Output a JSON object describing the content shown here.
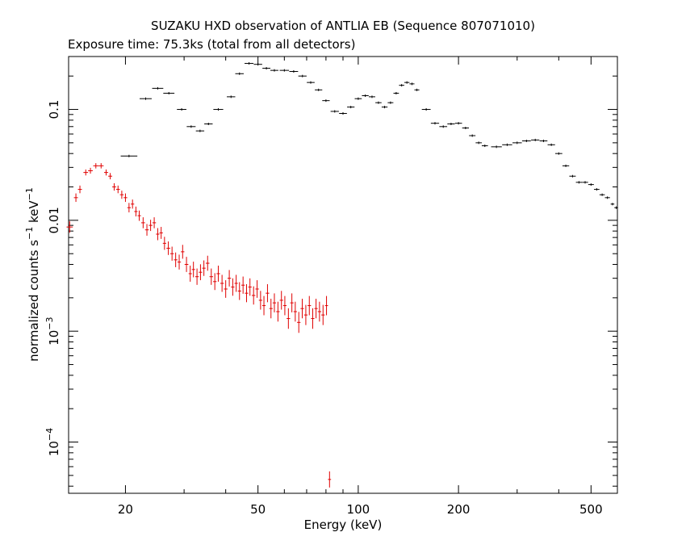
{
  "chart_data": {
    "type": "scatter",
    "title": "SUZAKU HXD observation of ANTLIA EB (Sequence 807071010)",
    "subtitle": "Exposure time: 75.3ks (total from all detectors)",
    "xlabel": "Energy (keV)",
    "ylabel": "normalized counts s",
    "ylabel_sup1": "−1",
    "ylabel_mid": " keV",
    "ylabel_sup2": "−1",
    "xscale": "log",
    "yscale": "log",
    "xlim": [
      13.5,
      600
    ],
    "ylim": [
      3.45e-05,
      0.3
    ],
    "grid": false,
    "x_ticks": [
      {
        "value": 20,
        "label": "20"
      },
      {
        "value": 50,
        "label": "50"
      },
      {
        "value": 100,
        "label": "100"
      },
      {
        "value": 200,
        "label": "200"
      },
      {
        "value": 500,
        "label": "500"
      }
    ],
    "y_ticks": [
      {
        "value": 0.1,
        "label": "0.1",
        "base": "",
        "exp": ""
      },
      {
        "value": 0.01,
        "label": "0.01",
        "base": "",
        "exp": ""
      },
      {
        "value": 0.001,
        "label": "",
        "base": "10",
        "exp": "−3"
      },
      {
        "value": 0.0001,
        "label": "",
        "base": "10",
        "exp": "−4"
      }
    ],
    "series": [
      {
        "color": "#000000",
        "points": [
          [
            20.5,
            0.038
          ],
          [
            23,
            0.125
          ],
          [
            25,
            0.155
          ],
          [
            27,
            0.14
          ],
          [
            29.5,
            0.1
          ],
          [
            31.5,
            0.07
          ],
          [
            33.5,
            0.064
          ],
          [
            35.5,
            0.074
          ],
          [
            38,
            0.1
          ],
          [
            41.5,
            0.13
          ],
          [
            44,
            0.21
          ],
          [
            47,
            0.26
          ],
          [
            50,
            0.255
          ],
          [
            53,
            0.235
          ],
          [
            56,
            0.225
          ],
          [
            60,
            0.225
          ],
          [
            64,
            0.22
          ],
          [
            68,
            0.2
          ],
          [
            72,
            0.175
          ],
          [
            76,
            0.15
          ],
          [
            80,
            0.12
          ],
          [
            85,
            0.096
          ],
          [
            90,
            0.092
          ],
          [
            95,
            0.105
          ],
          [
            100,
            0.125
          ],
          [
            105,
            0.133
          ],
          [
            110,
            0.13
          ],
          [
            115,
            0.115
          ],
          [
            120,
            0.105
          ],
          [
            125,
            0.115
          ],
          [
            130,
            0.14
          ],
          [
            135,
            0.165
          ],
          [
            140,
            0.175
          ],
          [
            145,
            0.17
          ],
          [
            150,
            0.15
          ],
          [
            160,
            0.1
          ],
          [
            170,
            0.075
          ],
          [
            180,
            0.07
          ],
          [
            190,
            0.074
          ],
          [
            200,
            0.075
          ],
          [
            210,
            0.068
          ],
          [
            220,
            0.058
          ],
          [
            230,
            0.05
          ],
          [
            240,
            0.047
          ],
          [
            260,
            0.046
          ],
          [
            280,
            0.048
          ],
          [
            300,
            0.05
          ],
          [
            320,
            0.052
          ],
          [
            340,
            0.053
          ],
          [
            360,
            0.052
          ],
          [
            380,
            0.048
          ],
          [
            400,
            0.04
          ],
          [
            420,
            0.031
          ],
          [
            440,
            0.025
          ],
          [
            460,
            0.022
          ],
          [
            480,
            0.022
          ],
          [
            500,
            0.021
          ],
          [
            520,
            0.019
          ],
          [
            540,
            0.017
          ],
          [
            560,
            0.016
          ],
          [
            580,
            0.014
          ],
          [
            595,
            0.013
          ]
        ]
      },
      {
        "color": "#e00000",
        "points": [
          [
            13.6,
            0.0087
          ],
          [
            14.2,
            0.016
          ],
          [
            14.6,
            0.019
          ],
          [
            15.2,
            0.027
          ],
          [
            15.7,
            0.028
          ],
          [
            16.3,
            0.031
          ],
          [
            16.9,
            0.031
          ],
          [
            17.5,
            0.027
          ],
          [
            18.0,
            0.025
          ],
          [
            18.5,
            0.02
          ],
          [
            19.0,
            0.019
          ],
          [
            19.5,
            0.017
          ],
          [
            20.0,
            0.016
          ],
          [
            20.5,
            0.013
          ],
          [
            21.0,
            0.014
          ],
          [
            21.5,
            0.012
          ],
          [
            22.0,
            0.011
          ],
          [
            22.6,
            0.0095
          ],
          [
            23.2,
            0.0082
          ],
          [
            23.8,
            0.009
          ],
          [
            24.4,
            0.0095
          ],
          [
            25.0,
            0.0075
          ],
          [
            25.6,
            0.0077
          ],
          [
            26.2,
            0.0062
          ],
          [
            26.9,
            0.0056
          ],
          [
            27.6,
            0.005
          ],
          [
            28.3,
            0.0044
          ],
          [
            29.0,
            0.0042
          ],
          [
            29.7,
            0.0052
          ],
          [
            30.5,
            0.004
          ],
          [
            31.3,
            0.0033
          ],
          [
            32.0,
            0.0036
          ],
          [
            32.8,
            0.0031
          ],
          [
            33.6,
            0.0034
          ],
          [
            34.4,
            0.0037
          ],
          [
            35.3,
            0.0041
          ],
          [
            36.2,
            0.0031
          ],
          [
            37.1,
            0.0028
          ],
          [
            38.0,
            0.0033
          ],
          [
            39.0,
            0.0027
          ],
          [
            40.0,
            0.0024
          ],
          [
            41.0,
            0.003
          ],
          [
            42.0,
            0.0025
          ],
          [
            43.0,
            0.0027
          ],
          [
            44.0,
            0.0023
          ],
          [
            45.1,
            0.0026
          ],
          [
            46.2,
            0.0022
          ],
          [
            47.3,
            0.0025
          ],
          [
            48.5,
            0.0021
          ],
          [
            49.7,
            0.0024
          ],
          [
            50.9,
            0.0019
          ],
          [
            52.1,
            0.0017
          ],
          [
            53.4,
            0.0022
          ],
          [
            54.7,
            0.0016
          ],
          [
            56.0,
            0.0018
          ],
          [
            57.4,
            0.0015
          ],
          [
            58.8,
            0.0019
          ],
          [
            60.2,
            0.0017
          ],
          [
            61.7,
            0.0013
          ],
          [
            63.2,
            0.0018
          ],
          [
            64.7,
            0.0015
          ],
          [
            66.3,
            0.0012
          ],
          [
            67.9,
            0.0016
          ],
          [
            69.6,
            0.0014
          ],
          [
            71.3,
            0.0017
          ],
          [
            73.0,
            0.0013
          ],
          [
            74.7,
            0.0016
          ],
          [
            76.5,
            0.0015
          ],
          [
            78.4,
            0.0014
          ],
          [
            80.3,
            0.0017
          ],
          [
            82.0,
            4.6e-05
          ]
        ]
      }
    ]
  }
}
